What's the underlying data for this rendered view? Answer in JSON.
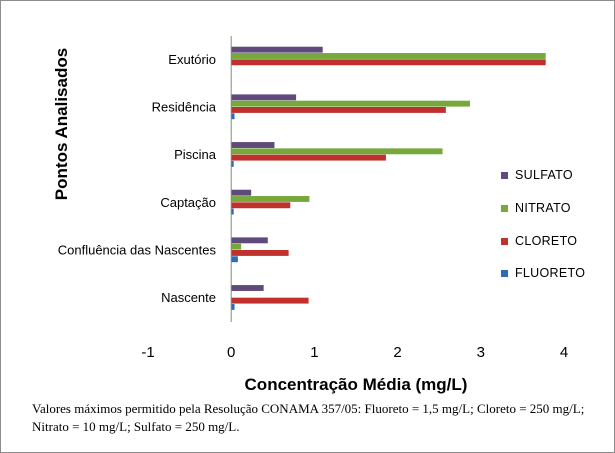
{
  "chart_data": {
    "type": "bar",
    "orientation": "horizontal",
    "categories": [
      "Exutório",
      "Residência",
      "Piscina",
      "Captação",
      "Confluência das Nascentes",
      "Nascente"
    ],
    "series": [
      {
        "name": "SULFATO",
        "color": "#604a7b",
        "values": [
          1.1,
          0.78,
          0.52,
          0.24,
          0.44,
          0.39
        ]
      },
      {
        "name": "NITRATO",
        "color": "#77a83c",
        "values": [
          3.78,
          2.87,
          2.54,
          0.94,
          0.12,
          0.0
        ]
      },
      {
        "name": "CLORETO",
        "color": "#c0302d",
        "values": [
          3.78,
          2.58,
          1.86,
          0.71,
          0.69,
          0.93
        ]
      },
      {
        "name": "FLUORETO",
        "color": "#2e6cb8",
        "values": [
          0.0,
          0.04,
          0.02,
          0.03,
          0.08,
          0.04
        ]
      }
    ],
    "xlabel": "Concentração Média (mg/L)",
    "ylabel": "Pontos Analisados",
    "xlim": [
      -1,
      4
    ],
    "xticks": [
      "-1",
      "0",
      "1",
      "2",
      "3",
      "4"
    ],
    "grid": false,
    "legend_position": "right"
  },
  "note": "Valores máximos permitido pela Resolução CONAMA 357/05:  Fluoreto = 1,5 mg/L; Cloreto = 250 mg/L;  Nitrato = 10 mg/L; Sulfato = 250 mg/L."
}
